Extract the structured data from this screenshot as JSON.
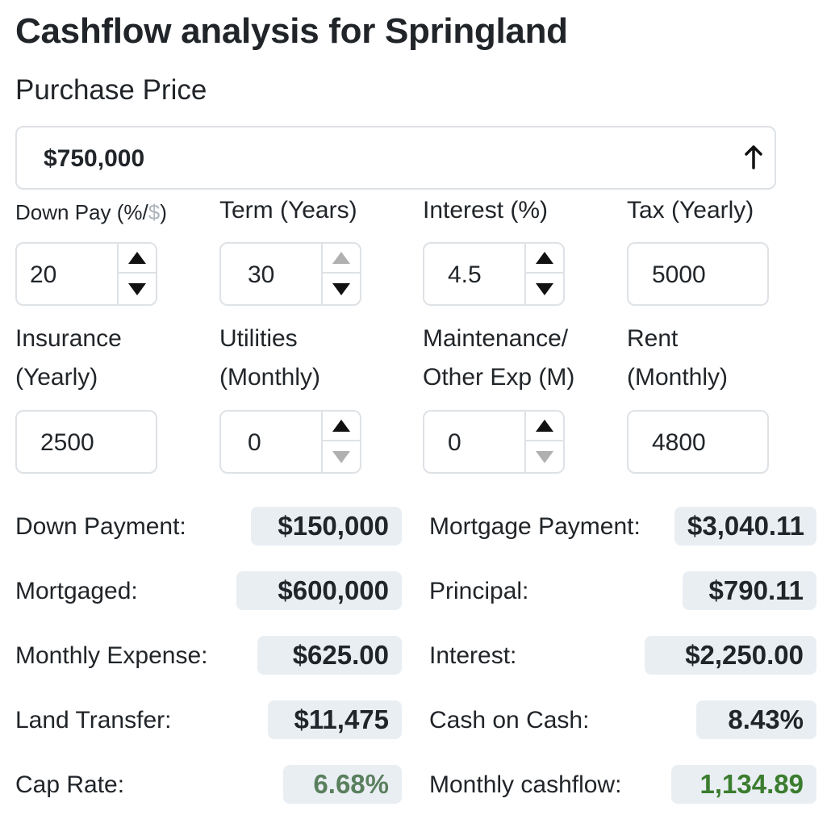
{
  "page": {
    "title": "Cashflow analysis for Springland"
  },
  "purchase": {
    "label": "Purchase Price",
    "value": "$750,000"
  },
  "fields": {
    "down_pay": {
      "label_main": "Down Pay (%/",
      "label_dollar": "$",
      "label_end": ")",
      "value": "20"
    },
    "term": {
      "label": "Term (Years)",
      "value": "30"
    },
    "interest": {
      "label": "Interest (%)",
      "value": "4.5"
    },
    "tax": {
      "label": "Tax (Yearly)",
      "value": "5000"
    },
    "insurance": {
      "label_line1": "Insurance",
      "label_line2": "(Yearly)",
      "value": "2500"
    },
    "utilities": {
      "label_line1": "Utilities",
      "label_line2": "(Monthly)",
      "value": "0"
    },
    "maintenance": {
      "label_line1": "Maintenance/",
      "label_line2": "Other Exp (M)",
      "value": "0"
    },
    "rent": {
      "label_line1": "Rent",
      "label_line2": "(Monthly)",
      "value": "4800"
    }
  },
  "results": {
    "down_payment": {
      "label": "Down Payment:",
      "value": "$150,000"
    },
    "mortgaged": {
      "label": "Mortgaged:",
      "value": "$600,000"
    },
    "monthly_expense": {
      "label": "Monthly Expense:",
      "value": "$625.00"
    },
    "land_transfer": {
      "label": "Land Transfer:",
      "value": "$11,475"
    },
    "cap_rate": {
      "label": "Cap Rate:",
      "value": "6.68%"
    },
    "mortgage_payment": {
      "label": "Mortgage Payment:",
      "value": "$3,040.11"
    },
    "principal": {
      "label": "Principal:",
      "value": "$790.11"
    },
    "interest": {
      "label": "Interest:",
      "value": "$2,250.00"
    },
    "cash_on_cash": {
      "label": "Cash on Cash:",
      "value": "8.43%"
    },
    "monthly_cashflow": {
      "label": "Monthly cashflow:",
      "value": "1,134.89"
    }
  },
  "colors": {
    "badge_bg": "#e9eef3",
    "cap_rate_text": "#5a7f5e",
    "cashflow_text": "#3b7d2e",
    "border": "#dee2e6"
  },
  "icons": {
    "price_arrow": "arrow-up-icon",
    "stepper_up": "triangle-up-icon",
    "stepper_down": "triangle-down-icon"
  }
}
